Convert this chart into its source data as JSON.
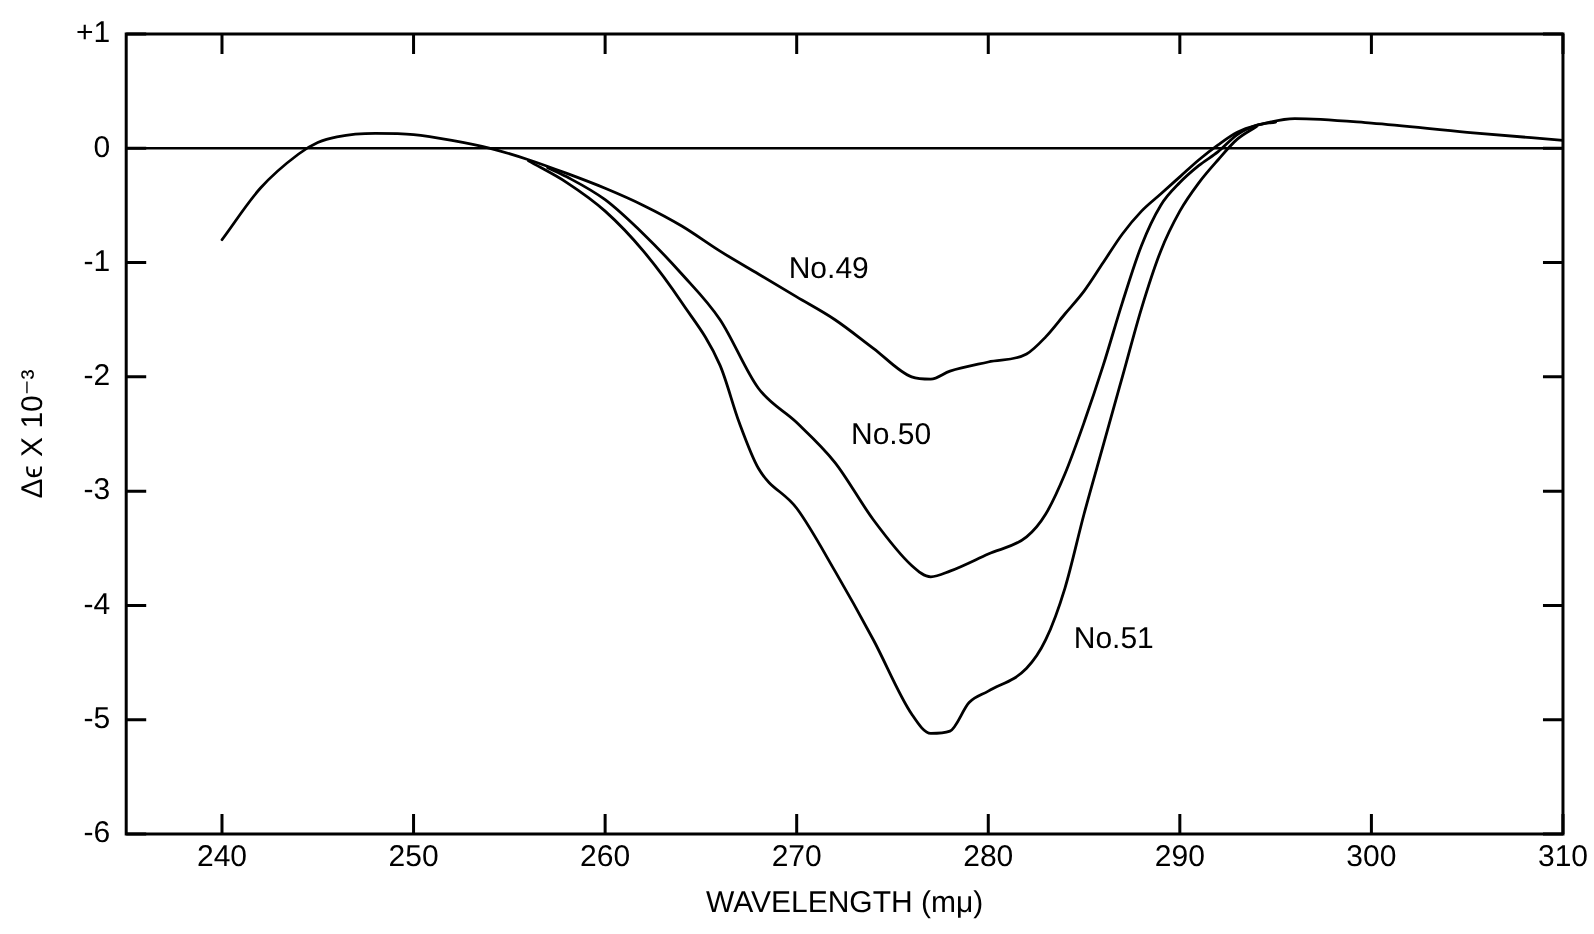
{
  "chart_data": {
    "type": "line",
    "xlabel": "WAVELENGTH (mμ)",
    "ylabel": "Δϵ X 10⁻³",
    "xlim": [
      235,
      310
    ],
    "xticks": [
      240,
      250,
      260,
      270,
      280,
      290,
      300,
      310
    ],
    "ylim": [
      -6,
      1
    ],
    "yticks": [
      {
        "value": 1,
        "label": "+1"
      },
      0,
      -1,
      -2,
      -3,
      -4,
      -5,
      -6
    ],
    "grid": false,
    "legend": false,
    "marker": "none",
    "line_style": "solid",
    "ref_lines": [
      {
        "axis": "y",
        "value": 0,
        "color": "#000000"
      }
    ],
    "series": [
      {
        "name": "No.49",
        "color": "#000000",
        "x": [
          240,
          242,
          244,
          245,
          246,
          248,
          250,
          252,
          254,
          256,
          258,
          260,
          262,
          264,
          266,
          268,
          270,
          272,
          274,
          276,
          277,
          278,
          280,
          282,
          283,
          284,
          285,
          286,
          287,
          288,
          289,
          290,
          291,
          292,
          293,
          294,
          296,
          300,
          305,
          310
        ],
        "values": [
          -0.8,
          -0.35,
          -0.05,
          0.05,
          0.1,
          0.13,
          0.12,
          0.07,
          0,
          -0.1,
          -0.22,
          -0.35,
          -0.5,
          -0.68,
          -0.9,
          -1.1,
          -1.3,
          -1.5,
          -1.75,
          -2,
          -2.02,
          -1.95,
          -1.87,
          -1.8,
          -1.65,
          -1.45,
          -1.25,
          -1,
          -0.75,
          -0.55,
          -0.4,
          -0.25,
          -0.1,
          0.03,
          0.14,
          0.2,
          0.26,
          0.22,
          0.14,
          0.07
        ]
      },
      {
        "name": "No.50",
        "color": "#000000",
        "x": [
          257,
          258,
          260,
          262,
          264,
          266,
          268,
          270,
          272,
          274,
          276,
          277,
          278,
          280,
          282,
          283,
          284,
          285,
          286,
          287,
          288,
          289,
          290,
          291,
          292,
          293,
          294,
          295
        ],
        "values": [
          -0.17,
          -0.25,
          -0.45,
          -0.75,
          -1.1,
          -1.5,
          -2.1,
          -2.4,
          -2.75,
          -3.25,
          -3.65,
          -3.75,
          -3.7,
          -3.55,
          -3.4,
          -3.2,
          -2.85,
          -2.4,
          -1.9,
          -1.35,
          -0.85,
          -0.5,
          -0.3,
          -0.15,
          -0.03,
          0.12,
          0.2,
          0.23
        ]
      },
      {
        "name": "No.51",
        "color": "#000000",
        "x": [
          256,
          258,
          260,
          262,
          264,
          266,
          267,
          268,
          270,
          272,
          274,
          276,
          277,
          278,
          279,
          280,
          282,
          283,
          284,
          285,
          286,
          287,
          288,
          289,
          290,
          291,
          292,
          293,
          294
        ],
        "values": [
          -0.11,
          -0.3,
          -0.55,
          -0.9,
          -1.35,
          -1.9,
          -2.4,
          -2.8,
          -3.15,
          -3.7,
          -4.3,
          -4.95,
          -5.12,
          -5.1,
          -4.85,
          -4.75,
          -4.55,
          -4.3,
          -3.85,
          -3.2,
          -2.6,
          -2,
          -1.4,
          -0.9,
          -0.55,
          -0.3,
          -0.1,
          0.08,
          0.19
        ]
      }
    ]
  }
}
